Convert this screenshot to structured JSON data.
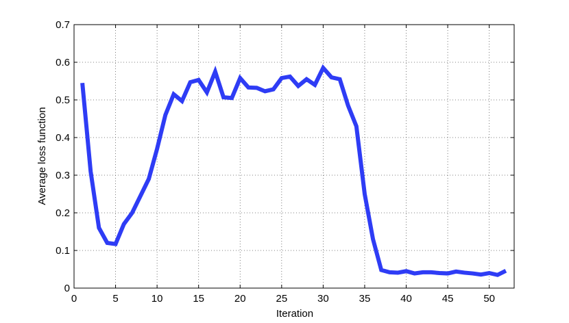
{
  "chart_data": {
    "type": "line",
    "xlabel": "Iteration",
    "ylabel": "Average loss function",
    "x": [
      1,
      2,
      3,
      4,
      5,
      6,
      7,
      8,
      9,
      10,
      11,
      12,
      13,
      14,
      15,
      16,
      17,
      18,
      19,
      20,
      21,
      22,
      23,
      24,
      25,
      26,
      27,
      28,
      29,
      30,
      31,
      32,
      33,
      34,
      35,
      36,
      37,
      38,
      39,
      40,
      41,
      42,
      43,
      44,
      45,
      46,
      47,
      48,
      49,
      50,
      51,
      52
    ],
    "series": [
      {
        "color": "#2e3cf5",
        "values": [
          0.545,
          0.31,
          0.16,
          0.12,
          0.117,
          0.17,
          0.2,
          0.245,
          0.29,
          0.37,
          0.46,
          0.515,
          0.497,
          0.547,
          0.553,
          0.52,
          0.575,
          0.507,
          0.505,
          0.558,
          0.533,
          0.532,
          0.523,
          0.528,
          0.558,
          0.562,
          0.537,
          0.555,
          0.54,
          0.585,
          0.56,
          0.555,
          0.485,
          0.43,
          0.25,
          0.13,
          0.048,
          0.042,
          0.041,
          0.045,
          0.039,
          0.042,
          0.042,
          0.04,
          0.039,
          0.044,
          0.041,
          0.039,
          0.036,
          0.04,
          0.035,
          0.046
        ]
      }
    ],
    "xlim": [
      0,
      53
    ],
    "ylim": [
      0,
      0.7
    ],
    "xticks": [
      0,
      5,
      10,
      15,
      20,
      25,
      30,
      35,
      40,
      45,
      50
    ],
    "yticks": [
      0,
      0.1,
      0.2,
      0.3,
      0.4,
      0.5,
      0.6,
      0.7
    ],
    "grid": true
  }
}
